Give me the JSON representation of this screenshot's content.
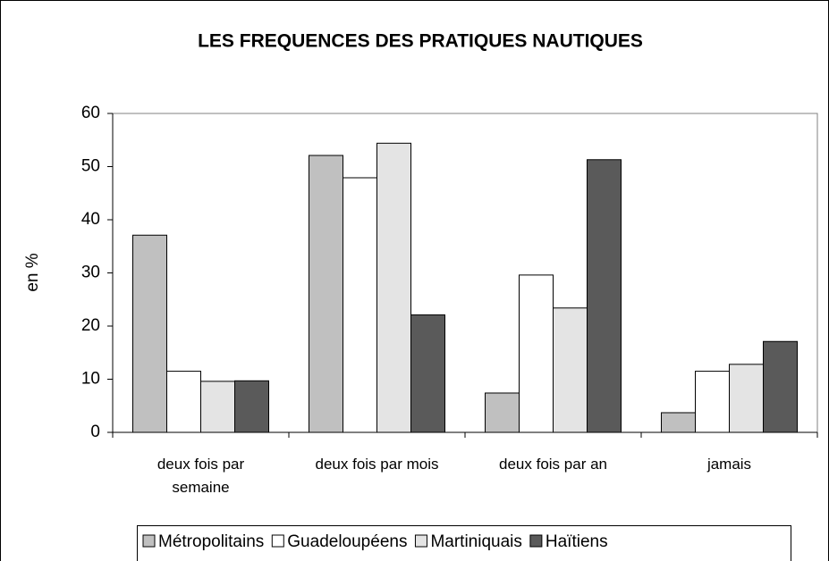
{
  "chart_data": {
    "type": "bar",
    "title": "LES FREQUENCES DES PRATIQUES NAUTIQUES",
    "y_label": "en %",
    "categories": [
      "deux fois par semaine",
      "deux fois par mois",
      "deux fois par an",
      "jamais"
    ],
    "series": [
      {
        "name": "Métropolitains",
        "color": "#c0c0c0",
        "values": [
          37.1,
          52.1,
          7.4,
          3.7
        ]
      },
      {
        "name": "Guadeloupéens",
        "color": "#ffffff",
        "values": [
          11.5,
          47.9,
          29.6,
          11.5
        ]
      },
      {
        "name": "Martiniquais",
        "color": "#e4e4e4",
        "values": [
          9.6,
          54.4,
          23.4,
          12.8
        ]
      },
      {
        "name": "Haïtiens",
        "color": "#5a5a5a",
        "values": [
          9.7,
          22.1,
          51.3,
          17.1
        ]
      }
    ],
    "ylim": [
      0,
      60
    ],
    "yticks": [
      0,
      10,
      20,
      30,
      40,
      50,
      60
    ],
    "legend": "bottom"
  }
}
